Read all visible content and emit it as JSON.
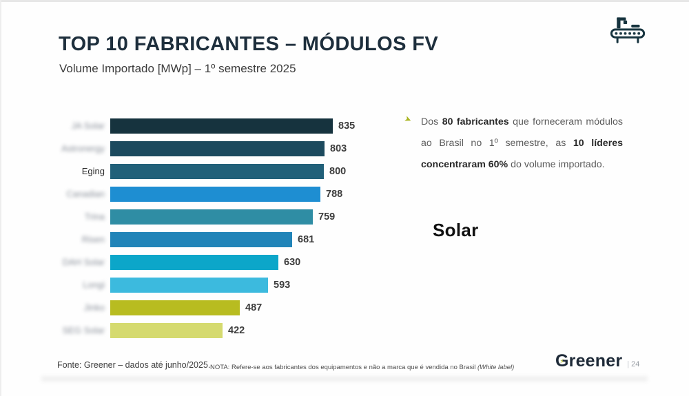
{
  "page": {
    "title": "TOP 10 FABRICANTES – MÓDULOS FV",
    "subtitle": "Volume Importado [MWp] – 1º semestre 2025"
  },
  "chart_data": {
    "type": "bar",
    "orientation": "horizontal",
    "title": "TOP 10 FABRICANTES – MÓDULOS FV",
    "subtitle": "Volume Importado [MWp] – 1º semestre 2025",
    "unit": "MWp",
    "categories": [
      "JA Solar",
      "Astronergy",
      "Eging",
      "Canadian",
      "Trina",
      "Risen",
      "DAH Solar",
      "Longi",
      "Jinko",
      "SEG Solar"
    ],
    "categories_blurred": [
      true,
      true,
      false,
      true,
      true,
      true,
      true,
      true,
      true,
      true
    ],
    "values": [
      835,
      803,
      800,
      788,
      759,
      681,
      630,
      593,
      487,
      422
    ],
    "bar_colors": [
      "#16333e",
      "#1c4a5e",
      "#216079",
      "#1e8ed2",
      "#2f8da4",
      "#2184b8",
      "#0ca6c9",
      "#3cbade",
      "#b8bc20",
      "#d5da6f"
    ],
    "xlim": [
      0,
      900
    ],
    "value_labels_shown": true,
    "grid": false,
    "legend": false
  },
  "annotation": {
    "bullet_icon": "arrow-bullet-icon",
    "bullet_color": "#a9b41f",
    "bullet_glyph": "➤",
    "full_text": "Dos 80 fabricantes que forneceram módulos ao Brasil no 1º semestre, as 10 líderes concentraram 60% do volume importado.",
    "segments": [
      {
        "text": "Dos ",
        "bold": false
      },
      {
        "text": "80 fabricantes",
        "bold": true
      },
      {
        "text": " que forneceram módulos ao Brasil no 1º semestre, as ",
        "bold": false
      },
      {
        "text": "10 líderes concentraram 60%",
        "bold": true
      },
      {
        "text": " do volume importado.",
        "bold": false
      }
    ]
  },
  "watermark": "Solar",
  "footer": {
    "fonte": "Fonte: Greener – dados até junho/2025.",
    "nota_prefix": "NOTA: Refere-se aos fabricantes dos equipamentos e não a marca que é vendida no Brasil ",
    "nota_italic": "(White label)"
  },
  "branding": {
    "logo_text": "Greener",
    "page_number": "24",
    "page_separator": "|",
    "header_icon": "factory-conveyor-icon"
  }
}
